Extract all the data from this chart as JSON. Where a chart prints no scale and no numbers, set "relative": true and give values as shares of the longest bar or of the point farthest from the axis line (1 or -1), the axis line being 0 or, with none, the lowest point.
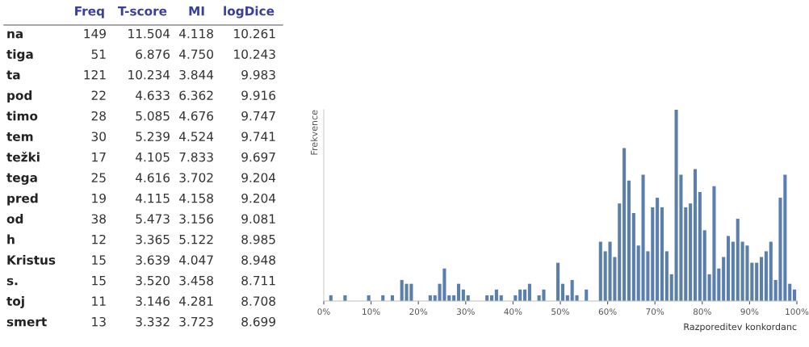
{
  "chart_data": [
    {
      "type": "other",
      "annotations": [
        "Freq",
        "T-score",
        "MI",
        "logDice",
        "na",
        "149",
        "11.504",
        "4.118",
        "10.261",
        "tiga",
        "51",
        "6.876",
        "4.750",
        "10.243",
        "ta",
        "121",
        "10.234",
        "3.844",
        "9.983",
        "pod",
        "22",
        "4.633",
        "6.362",
        "9.916",
        "timo",
        "28",
        "5.085",
        "4.676",
        "9.747",
        "tem",
        "30",
        "5.239",
        "4.524",
        "9.741",
        "težki",
        "17",
        "4.105",
        "7.833",
        "9.697",
        "tega",
        "25",
        "4.616",
        "3.702",
        "9.204",
        "pred",
        "19",
        "4.115",
        "4.158",
        "9.204",
        "od",
        "38",
        "5.473",
        "3.156",
        "9.081",
        "h",
        "12",
        "3.365",
        "5.122",
        "8.985",
        "Kristus",
        "15",
        "3.639",
        "4.047",
        "8.948",
        "s.",
        "15",
        "3.520",
        "3.458",
        "8.711",
        "toj",
        "11",
        "3.146",
        "4.281",
        "8.708",
        "smert",
        "13",
        "3.332",
        "3.723",
        "8.699"
      ]
    },
    {
      "type": "bar",
      "relative": true,
      "ylabel": "Frekvence",
      "xlabel": "Razporeditev konkordanc",
      "color": "#5b7fad",
      "grid": false,
      "xlim": [
        0,
        100
      ],
      "xticks": [
        {
          "value": 0,
          "label": "0%"
        },
        {
          "value": 10,
          "label": "10%"
        },
        {
          "value": 20,
          "label": "20%"
        },
        {
          "value": 30,
          "label": "30%"
        },
        {
          "value": 40,
          "label": "40%"
        },
        {
          "value": 50,
          "label": "50%"
        },
        {
          "value": 60,
          "label": "60%"
        },
        {
          "value": 70,
          "label": "70%"
        },
        {
          "value": 80,
          "label": "80%"
        },
        {
          "value": 90,
          "label": "90%"
        },
        {
          "value": 100,
          "label": "100%"
        }
      ],
      "x": [
        0.5,
        1.5,
        2.5,
        3.5,
        4.5,
        5.5,
        6.5,
        7.5,
        8.5,
        9.5,
        10.5,
        11.5,
        12.5,
        13.5,
        14.5,
        15.5,
        16.5,
        17.5,
        18.5,
        19.5,
        20.5,
        21.5,
        22.5,
        23.5,
        24.5,
        25.5,
        26.5,
        27.5,
        28.5,
        29.5,
        30.5,
        31.5,
        32.5,
        33.5,
        34.5,
        35.5,
        36.5,
        37.5,
        38.5,
        39.5,
        40.5,
        41.5,
        42.5,
        43.5,
        44.5,
        45.5,
        46.5,
        47.5,
        48.5,
        49.5,
        50.5,
        51.5,
        52.5,
        53.5,
        54.5,
        55.5,
        56.5,
        57.5,
        58.5,
        59.5,
        60.5,
        61.5,
        62.5,
        63.5,
        64.5,
        65.5,
        66.5,
        67.5,
        68.5,
        69.5,
        70.5,
        71.5,
        72.5,
        73.5,
        74.5,
        75.5,
        76.5,
        77.5,
        78.5,
        79.5,
        80.5,
        81.5,
        82.5,
        83.5,
        84.5,
        85.5,
        86.5,
        87.5,
        88.5,
        89.5,
        90.5,
        91.5,
        92.5,
        93.5,
        94.5,
        95.5,
        96.5,
        97.5,
        98.5,
        99.5
      ],
      "values": [
        0,
        0.03,
        0,
        0,
        0.03,
        0,
        0,
        0,
        0,
        0.03,
        0,
        0,
        0.03,
        0,
        0.03,
        0,
        0.11,
        0.09,
        0.09,
        0,
        0,
        0,
        0.03,
        0.03,
        0.09,
        0.17,
        0.03,
        0.03,
        0.09,
        0.06,
        0.03,
        0,
        0,
        0,
        0.03,
        0.03,
        0.06,
        0.03,
        0,
        0,
        0.03,
        0.06,
        0.06,
        0.09,
        0,
        0.03,
        0.06,
        0,
        0,
        0.2,
        0.09,
        0.03,
        0.11,
        0.03,
        0,
        0.06,
        0,
        0,
        0.31,
        0.26,
        0.31,
        0.23,
        0.51,
        0.8,
        0.63,
        0.46,
        0.29,
        0.66,
        0.26,
        0.49,
        0.54,
        0.49,
        0.26,
        0.14,
        1,
        0.66,
        0.49,
        0.51,
        0.69,
        0.57,
        0.37,
        0.14,
        0.6,
        0.17,
        0.23,
        0.34,
        0.31,
        0.43,
        0.31,
        0.29,
        0.2,
        0.2,
        0.23,
        0.26,
        0.31,
        0.11,
        0.54,
        0.66,
        0.09,
        0.06
      ]
    }
  ]
}
